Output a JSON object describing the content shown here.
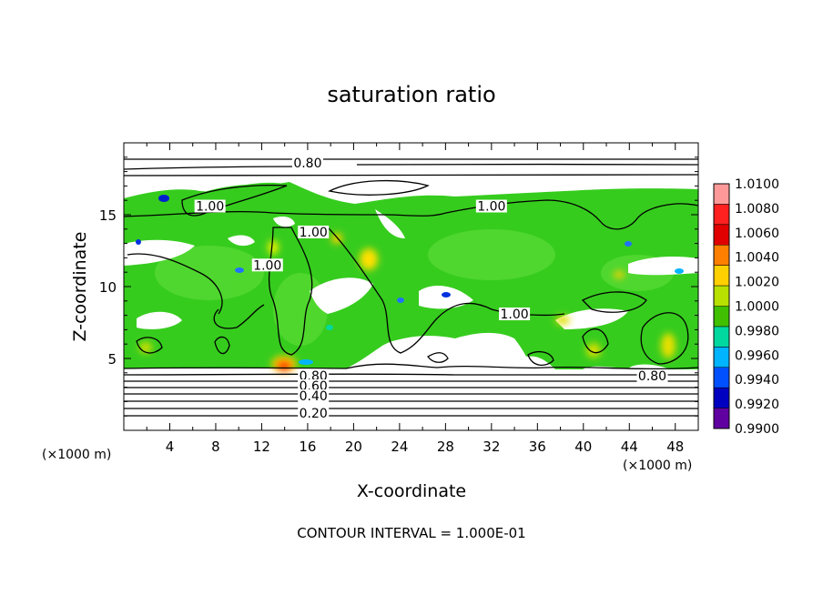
{
  "chart_data": {
    "type": "heatmap",
    "title": "saturation ratio",
    "xlabel": "X-coordinate",
    "ylabel": "Z-coordinate",
    "x_unit": "(×1000 m)",
    "z_unit": "(×1000 m)",
    "xlim": [
      0,
      50
    ],
    "ylim": [
      0,
      20
    ],
    "x_ticks": [
      4,
      8,
      12,
      16,
      20,
      24,
      28,
      32,
      36,
      40,
      44,
      48
    ],
    "y_ticks": [
      5,
      10,
      15
    ],
    "colorbar": {
      "levels": [
        "1.0100",
        "1.0080",
        "1.0060",
        "1.0040",
        "1.0020",
        "1.0000",
        "0.9980",
        "0.9960",
        "0.9940",
        "0.9920",
        "0.9900"
      ],
      "colors": [
        "#ff9999",
        "#ff2020",
        "#e00000",
        "#ff8000",
        "#ffd000",
        "#b8e000",
        "#40c000",
        "#00d8a0",
        "#00b4ff",
        "#0050ff",
        "#0000c0",
        "#6000a0"
      ]
    },
    "contour_labels": [
      {
        "text": "0.80",
        "x": 16,
        "z": 18.6
      },
      {
        "text": "1.00",
        "x": 7.5,
        "z": 15.6
      },
      {
        "text": "1.00",
        "x": 32,
        "z": 15.6
      },
      {
        "text": "1.00",
        "x": 16.5,
        "z": 13.8
      },
      {
        "text": "1.00",
        "x": 12.5,
        "z": 11.5
      },
      {
        "text": "1.00",
        "x": 34,
        "z": 8.1
      },
      {
        "text": "0.80",
        "x": 16.5,
        "z": 3.8
      },
      {
        "text": "0.60",
        "x": 16.5,
        "z": 3.1
      },
      {
        "text": "0.40",
        "x": 16.5,
        "z": 2.4
      },
      {
        "text": "0.80",
        "x": 46,
        "z": 3.8
      },
      {
        "text": "0.20",
        "x": 16.5,
        "z": 1.2
      }
    ],
    "contour_interval": "CONTOUR INTERVAL = 1.000E-01"
  }
}
